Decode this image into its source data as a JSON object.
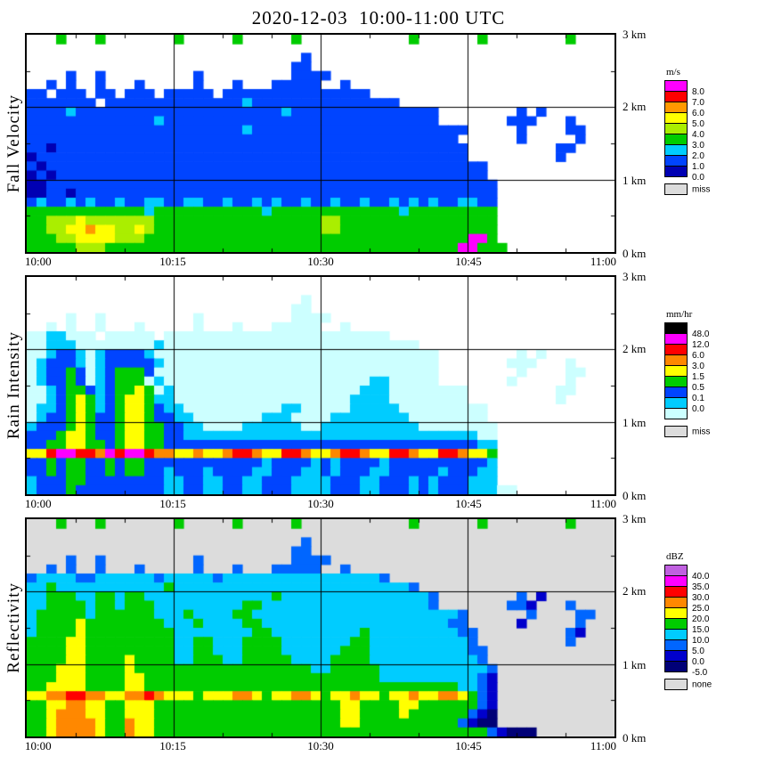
{
  "page_title": "2020-12-03  10:00-11:00 UTC",
  "x_axis": {
    "labels": [
      "10:00",
      "10:15",
      "10:30",
      "10:45",
      "11:00"
    ]
  },
  "y_axis": {
    "labels": [
      "3 km",
      "2 km",
      "1 km",
      "0 km"
    ],
    "range_km": [
      0,
      3
    ]
  },
  "chart_data": [
    {
      "type": "heatmap",
      "name": "Fall Velocity",
      "units": "m/s",
      "x_range": [
        "10:00",
        "11:00"
      ],
      "x_step_minutes": 1,
      "y_range_km": [
        0,
        3
      ],
      "cols": 60,
      "rows": 24,
      "background": "#ffffff",
      "legend": {
        "title": "m/s",
        "labels": [
          "8.0",
          "7.0",
          "6.0",
          "5.0",
          "4.0",
          "3.0",
          "2.0",
          "1.0",
          "0.0"
        ],
        "colors": [
          "#ff00ff",
          "#ff0000",
          "#ff9900",
          "#ffff00",
          "#aaee00",
          "#00cc00",
          "#00ccff",
          "#0044ff",
          "#0000b3"
        ],
        "missing": {
          "label": "miss",
          "color": "#dcdcdc"
        }
      },
      "palette": {
        "0": "#0000b3",
        "1": "#0044ff",
        "2": "#00ccff",
        "3": "#00cc00",
        "4": "#aaee00",
        "5": "#ffff00",
        "6": "#ff9900",
        "7": "#ff0000",
        "8": "#ff00ff"
      },
      "grid": [
        "...3...3.......3.....3.....3...........3......3........3......",
        "............................................................",
        "............................1..............................",
        "...........................11..............................",
        "....1..1.........1.........1111.............................",
        "..1.1..1...1.....1...1...11111..1...........................",
        "11.111.11.111.11111.111111111111111.........................",
        "1111111.111111111111112111111111111111......................",
        "111121111111111111111111112111111111111111........1.1.......",
        "111111111111121111111111111111111111111111.......111...1...",
        "111111111111111111111121111111111111111111111.....1....11..",
        "11111111111111111111111111111111111111111111......1.....1..",
        "110111111111111111111111111111111111111111111.........11.",
        "011111111111111111111111111111111111111111111.........1..",
        "10111111111111111111111111111111111111111111111............",
        "01011111111111111111111111111111111111111111111............",
        "001111111111111111111111111111111111111111111111...........",
        "001101111111111111111111111111111111111111111111...........",
        "121121211211221122112112121121121121121212112211...........",
        "333333333333233333333333233333333333332333333333...........",
        "334445444444433333333333333333443333333333333333...........",
        "334455655445433333333333333333443333333333333333...........",
        "333445555444333333333333333333333333333333333883...........",
        "3333344433333333333333333333333333333333333388333..........."
      ]
    },
    {
      "type": "heatmap",
      "name": "Rain Intensity",
      "units": "mm/hr",
      "x_range": [
        "10:00",
        "11:00"
      ],
      "x_step_minutes": 1,
      "y_range_km": [
        0,
        3
      ],
      "cols": 60,
      "rows": 24,
      "background": "#ffffff",
      "legend": {
        "title": "mm/hr",
        "labels": [
          "48.0",
          "12.0",
          "6.0",
          "3.0",
          "1.5",
          "0.5",
          "0.1",
          "0.0",
          ""
        ],
        "colors": [
          "#000000",
          "#ff00ff",
          "#ff0000",
          "#ff8800",
          "#ffff00",
          "#00cc00",
          "#0044ff",
          "#00ccff",
          "#ccffff"
        ],
        "missing": {
          "label": "miss",
          "color": "#dcdcdc"
        }
      },
      "palette": {
        "0": "#ccffff",
        "1": "#00ccff",
        "2": "#0044ff",
        "3": "#00cc00",
        "4": "#ffff00",
        "5": "#ff8800",
        "6": "#ff0000",
        "7": "#ff00ff"
      },
      "grid": [
        "............................................................",
        "............................................................",
        "............................0..............................",
        "...........................00..............................",
        "....0..0.........0.........0000.............................",
        "..0.0..0...0.....0...0...00000..0...........................",
        "0011000.00000.00000000000000000000000.......................",
        "0011100000000100000000000000000000000000....................",
        "001221012222100000000000000000000000000000........0.0.......",
        "012221012222210000000000000000000000000000.......000...0...",
        "012232012333200000000000000000000000000000........0....00..",
        "012232012333010000000000000000000001100000.......0.....0..",
        "001233212334301000000000000000000011100000000.........00.",
        "001234312344311000000000000000000111100000000.........0..",
        "01123431234432110000000000110000011111000000000............",
        "01223432234432211000000011100001111111100000000............",
        "122234322344332211000011111100111111111100000000...........",
        "222344322344332211111111111111111111111111111100...........",
        "223344332344332222222222222222222222222222222211...........",
        "446776657677655445445665446654456654466544665443...........",
        "223233223233222222222222122221212222122222222221...........",
        "223233223233221222122221122211212221122222122211...........",
        "122233222222221122112211222111122211222121222111...........",
        "1222322222222211221122112221111222112221212221110 0.........."
      ]
    },
    {
      "type": "heatmap",
      "name": "Reflectivity",
      "units": "dBZ",
      "x_range": [
        "10:00",
        "11:00"
      ],
      "x_step_minutes": 1,
      "y_range_km": [
        0,
        3
      ],
      "cols": 60,
      "rows": 24,
      "background": "#dcdcdc",
      "legend": {
        "title": "dBZ",
        "labels": [
          "40.0",
          "35.0",
          "30.0",
          "25.0",
          "20.0",
          "15.0",
          "10.0",
          "5.0",
          "0.0",
          "-5.0"
        ],
        "colors": [
          "#c060e0",
          "#ff00ff",
          "#ff0000",
          "#ff8800",
          "#ffff00",
          "#00cc00",
          "#00ccff",
          "#0066ff",
          "#0000cc",
          "#000077"
        ],
        "missing": {
          "label": "none",
          "color": "#dcdcdc"
        }
      },
      "palette": {
        "0": "#000077",
        "1": "#0000cc",
        "2": "#0066ff",
        "3": "#00ccff",
        "4": "#00cc00",
        "5": "#ffff00",
        "6": "#ff8800",
        "7": "#ff0000",
        "8": "#ff00ff",
        "9": "#c060e0"
      },
      "grid": [
        "...4...4.......4.....4.....4...........4......4........4......",
        "............................................................",
        "............................2..............................",
        "...........................22..............................",
        "....2..2.........2.........2222.............................",
        "..2.2..2...2.....2...2...22222..2...........................",
        "2333322333333233333233333333333333332.......................",
        "3343333333333343333333333333333333333332....................",
        "334443344344333333333333343333333333333332........2.1.......",
        "334444344344433333333344333333333333333332.......221...2...",
        "344444344444433343333443333333333333333333332......2....22..",
        "344445444444443334333344333333333333333333322.....1.....2..",
        "344445444444444333333334433333333343333333332 2.........21.",
        "444455444444444334433344443333333443333333333 2.........2..",
        "44445544444444433443334444333333444333333333322............",
        "44445544445444433444334444433334444333333333332............",
        "444555444454444444444444444443344444333333333332...........",
        "444555444455444444444444444444444444333333333321...........",
        "445555444455444444444444444444444444444444443321...........",
        "556677665566765554555665455665455655455655665421...........",
        "445566554455544444444444444444445544445544444421...........",
        "445666554455544444444444444444445544445444444210...........",
        "445666654465544444444444444444445544444444442100...........",
        "4456666544655444444444444444444444444444444444421000..........."
      ]
    }
  ]
}
